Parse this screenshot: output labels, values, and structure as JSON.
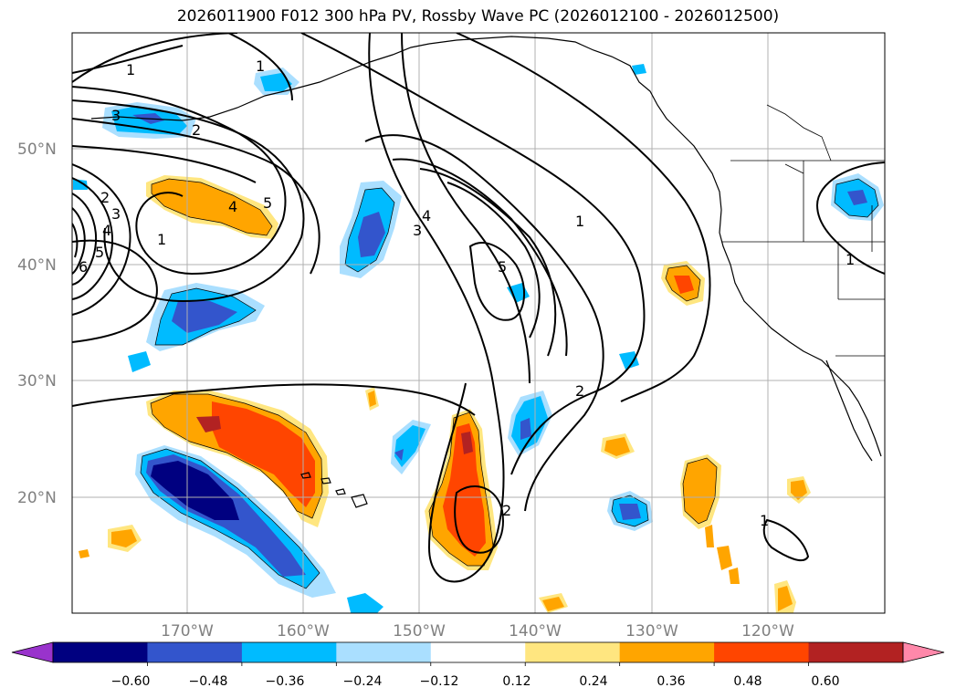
{
  "title": "2026011900 F012 300 hPa PV, Rossby Wave PC (2026012100 - 2026012500)",
  "map": {
    "lon_range": [
      -180,
      -110
    ],
    "lat_range": [
      10,
      60
    ],
    "grid": true,
    "lat_labels": [
      "50°N",
      "40°N",
      "30°N",
      "20°N"
    ],
    "lon_labels": [
      "170°W",
      "160°W",
      "150°W",
      "140°W",
      "130°W",
      "120°W"
    ],
    "contour_labels": [
      "1",
      "1",
      "2",
      "3",
      "2",
      "3",
      "4",
      "5",
      "6",
      "4",
      "5",
      "1",
      "3",
      "4",
      "5",
      "1",
      "2",
      "2",
      "1",
      "1"
    ]
  },
  "colorbar": {
    "extend": "both",
    "ticks": [
      "−0.60",
      "−0.48",
      "−0.36",
      "−0.24",
      "−0.12",
      "0.12",
      "0.24",
      "0.36",
      "0.48",
      "0.60"
    ],
    "colors": [
      "#9933cc",
      "#000080",
      "#3355cc",
      "#00bbff",
      "#aadfff",
      "#ffffff",
      "#ffe680",
      "#ffa500",
      "#ff4500",
      "#b22222",
      "#ff88aa"
    ]
  }
}
